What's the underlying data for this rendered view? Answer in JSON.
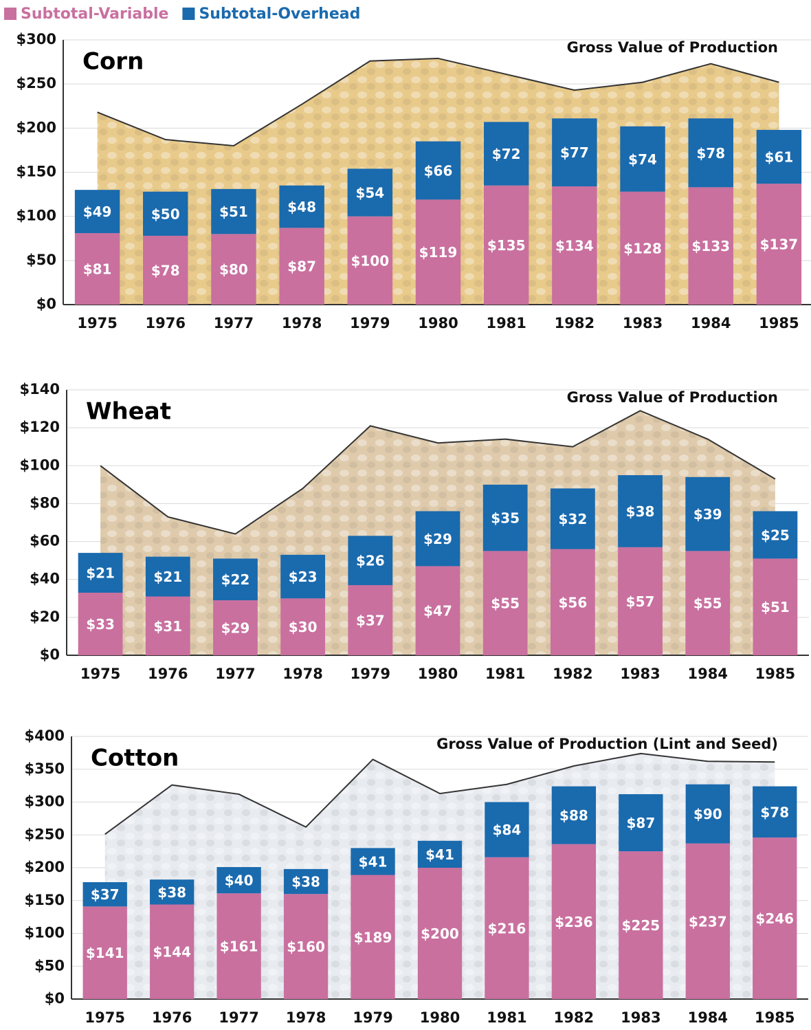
{
  "legend": {
    "items": [
      {
        "name": "Subtotal-Variable",
        "color": "#c9709f"
      },
      {
        "name": "Subtotal-Overhead",
        "color": "#1a6aae"
      }
    ]
  },
  "chart_data": [
    {
      "type": "bar",
      "stacked": true,
      "title": "Corn",
      "annotation": "Gross Value of Production",
      "categories": [
        "1975",
        "1976",
        "1977",
        "1978",
        "1979",
        "1980",
        "1981",
        "1982",
        "1983",
        "1984",
        "1985"
      ],
      "series": [
        {
          "values": [
            81,
            78,
            80,
            87,
            100,
            119,
            135,
            134,
            128,
            133,
            137
          ],
          "value_labels": [
            "$81",
            "$78",
            "$80",
            "$87",
            "$100",
            "$119",
            "$135",
            "$134",
            "$128",
            "$133",
            "$137"
          ]
        },
        {
          "values": [
            49,
            50,
            51,
            48,
            54,
            66,
            72,
            77,
            74,
            78,
            61
          ],
          "value_labels": [
            "$49",
            "$50",
            "$51",
            "$48",
            "$54",
            "$66",
            "$72",
            "$77",
            "$74",
            "$78",
            "$61"
          ]
        }
      ],
      "area": {
        "values": [
          218,
          187,
          180,
          227,
          276,
          279,
          261,
          243,
          252,
          273,
          252
        ],
        "color": "#e6c47e"
      },
      "ylim": [
        0,
        300
      ],
      "yticks": [
        {
          "value": 0,
          "label": "$0"
        },
        {
          "value": 50,
          "label": "$50"
        },
        {
          "value": 100,
          "label": "$100"
        },
        {
          "value": 150,
          "label": "$150"
        },
        {
          "value": 200,
          "label": "$200"
        },
        {
          "value": 250,
          "label": "$250"
        },
        {
          "value": 300,
          "label": "$300"
        }
      ],
      "grid": true
    },
    {
      "type": "bar",
      "stacked": true,
      "title": "Wheat",
      "annotation": "Gross Value of Production",
      "categories": [
        "1975",
        "1976",
        "1977",
        "1978",
        "1979",
        "1980",
        "1981",
        "1982",
        "1983",
        "1984",
        "1985"
      ],
      "series": [
        {
          "values": [
            33,
            31,
            29,
            30,
            37,
            47,
            55,
            56,
            57,
            55,
            51
          ],
          "value_labels": [
            "$33",
            "$31",
            "$29",
            "$30",
            "$37",
            "$47",
            "$55",
            "$56",
            "$57",
            "$55",
            "$51"
          ]
        },
        {
          "values": [
            21,
            21,
            22,
            23,
            26,
            29,
            35,
            32,
            38,
            39,
            25
          ],
          "value_labels": [
            "$21",
            "$21",
            "$22",
            "$23",
            "$26",
            "$29",
            "$35",
            "$32",
            "$38",
            "$39",
            "$25"
          ]
        }
      ],
      "area": {
        "values": [
          100,
          73,
          64,
          88,
          121,
          112,
          114,
          110,
          129,
          114,
          93
        ],
        "color": "#dcc5a3"
      },
      "ylim": [
        0,
        140
      ],
      "yticks": [
        {
          "value": 0,
          "label": "$0"
        },
        {
          "value": 20,
          "label": "$20"
        },
        {
          "value": 40,
          "label": "$40"
        },
        {
          "value": 60,
          "label": "$60"
        },
        {
          "value": 80,
          "label": "$80"
        },
        {
          "value": 100,
          "label": "$100"
        },
        {
          "value": 120,
          "label": "$120"
        },
        {
          "value": 140,
          "label": "$140"
        }
      ],
      "grid": true
    },
    {
      "type": "bar",
      "stacked": true,
      "title": "Cotton",
      "annotation": "Gross Value of Production (Lint and Seed)",
      "categories": [
        "1975",
        "1976",
        "1977",
        "1978",
        "1979",
        "1980",
        "1981",
        "1982",
        "1983",
        "1984",
        "1985"
      ],
      "series": [
        {
          "values": [
            141,
            144,
            161,
            160,
            189,
            200,
            216,
            236,
            225,
            237,
            246
          ],
          "value_labels": [
            "$141",
            "$144",
            "$161",
            "$160",
            "$189",
            "$200",
            "$216",
            "$236",
            "$225",
            "$237",
            "$246"
          ]
        },
        {
          "values": [
            37,
            38,
            40,
            38,
            41,
            41,
            84,
            88,
            87,
            90,
            78
          ],
          "value_labels": [
            "$37",
            "$38",
            "$40",
            "$38",
            "$41",
            "$41",
            "$84",
            "$88",
            "$87",
            "$90",
            "$78"
          ]
        }
      ],
      "area": {
        "values": [
          251,
          326,
          312,
          262,
          365,
          313,
          327,
          355,
          374,
          362,
          361
        ],
        "color": "#e6e9ee"
      },
      "ylim": [
        0,
        400
      ],
      "yticks": [
        {
          "value": 0,
          "label": "$0"
        },
        {
          "value": 50,
          "label": "$50"
        },
        {
          "value": 100,
          "label": "$100"
        },
        {
          "value": 150,
          "label": "$150"
        },
        {
          "value": 200,
          "label": "$200"
        },
        {
          "value": 250,
          "label": "$250"
        },
        {
          "value": 300,
          "label": "$300"
        },
        {
          "value": 350,
          "label": "$350"
        },
        {
          "value": 400,
          "label": "$400"
        }
      ],
      "grid": true
    }
  ]
}
